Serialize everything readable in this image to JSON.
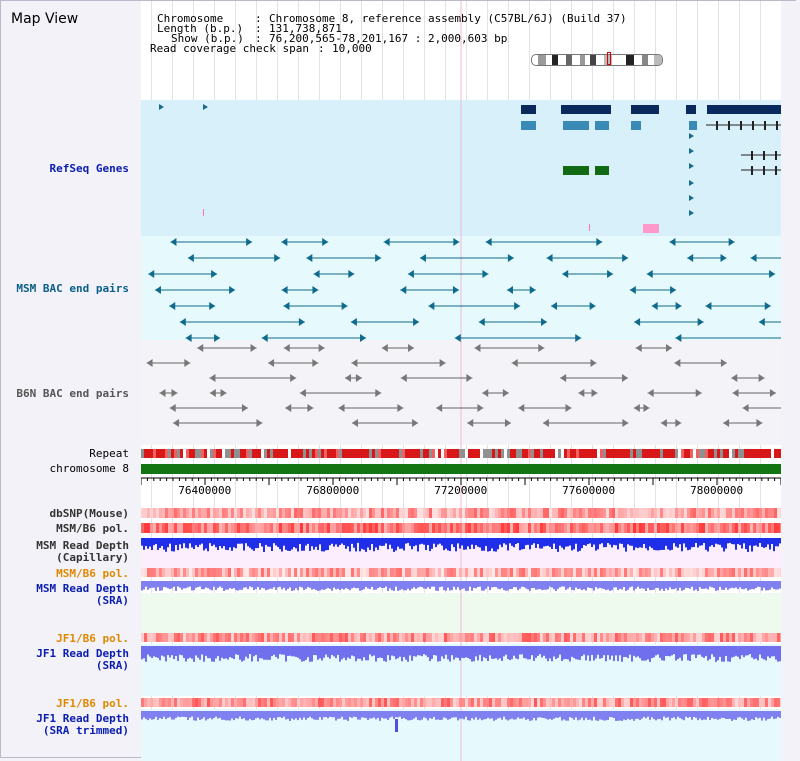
{
  "title": "Map View",
  "info": {
    "chromosome_key": "Chromosome",
    "chromosome_val": "Chromosome 8, reference assembly (C57BL/6J) (Build 37)",
    "length_key": "Length (b.p.)",
    "length_val": "131,738,871",
    "show_key": "Show (b.p.)",
    "show_val": "76,200,565-78,201,167 : 2,000,603 bp",
    "span_key": "Read coverage check span",
    "span_val": "10,000"
  },
  "tracks": {
    "refseq": "RefSeq Genes",
    "msm_bac": "MSM BAC end pairs",
    "b6n_bac": "B6N BAC end pairs",
    "repeat": "Repeat",
    "chromosome": "chromosome 8",
    "dbsnp": "dbSNP(Mouse)",
    "msm_b6_pol": "MSM/B6 pol.",
    "msm_depth_cap_1": "MSM Read Depth",
    "msm_depth_cap_2": "(Capillary)",
    "msm_b6_pol_2": "MSM/B6 pol.",
    "msm_depth_sra_1": "MSM Read Depth",
    "msm_depth_sra_2": "(SRA)",
    "jf1_b6_pol": "JF1/B6 pol.",
    "jf1_depth_sra_1": "JF1 Read Depth",
    "jf1_depth_sra_2": "(SRA)",
    "jf1_b6_pol_2": "JF1/B6 pol.",
    "jf1_depth_trim_1": "JF1 Read Depth",
    "jf1_depth_trim_2": "(SRA trimmed)"
  },
  "axis": {
    "ticks": [
      "76400000",
      "76800000",
      "77200000",
      "77600000",
      "78000000"
    ],
    "tick_values": [
      76400000,
      76800000,
      77200000,
      77600000,
      78000000
    ],
    "range": [
      76200565,
      78201167
    ]
  },
  "colors": {
    "refseq_bg": "#d8f0fa",
    "msm_bg": "#e6f9fc",
    "gene_dark": "#0a2a5e",
    "gene_mid": "#3a8ab8",
    "gene_green": "#126a12",
    "msm_line": "#0f6a8c",
    "b6n_line": "#666666",
    "chromosome": "#127512",
    "depth_blue": "#1f2ee8",
    "depth_lavender": "#8080f0"
  }
}
